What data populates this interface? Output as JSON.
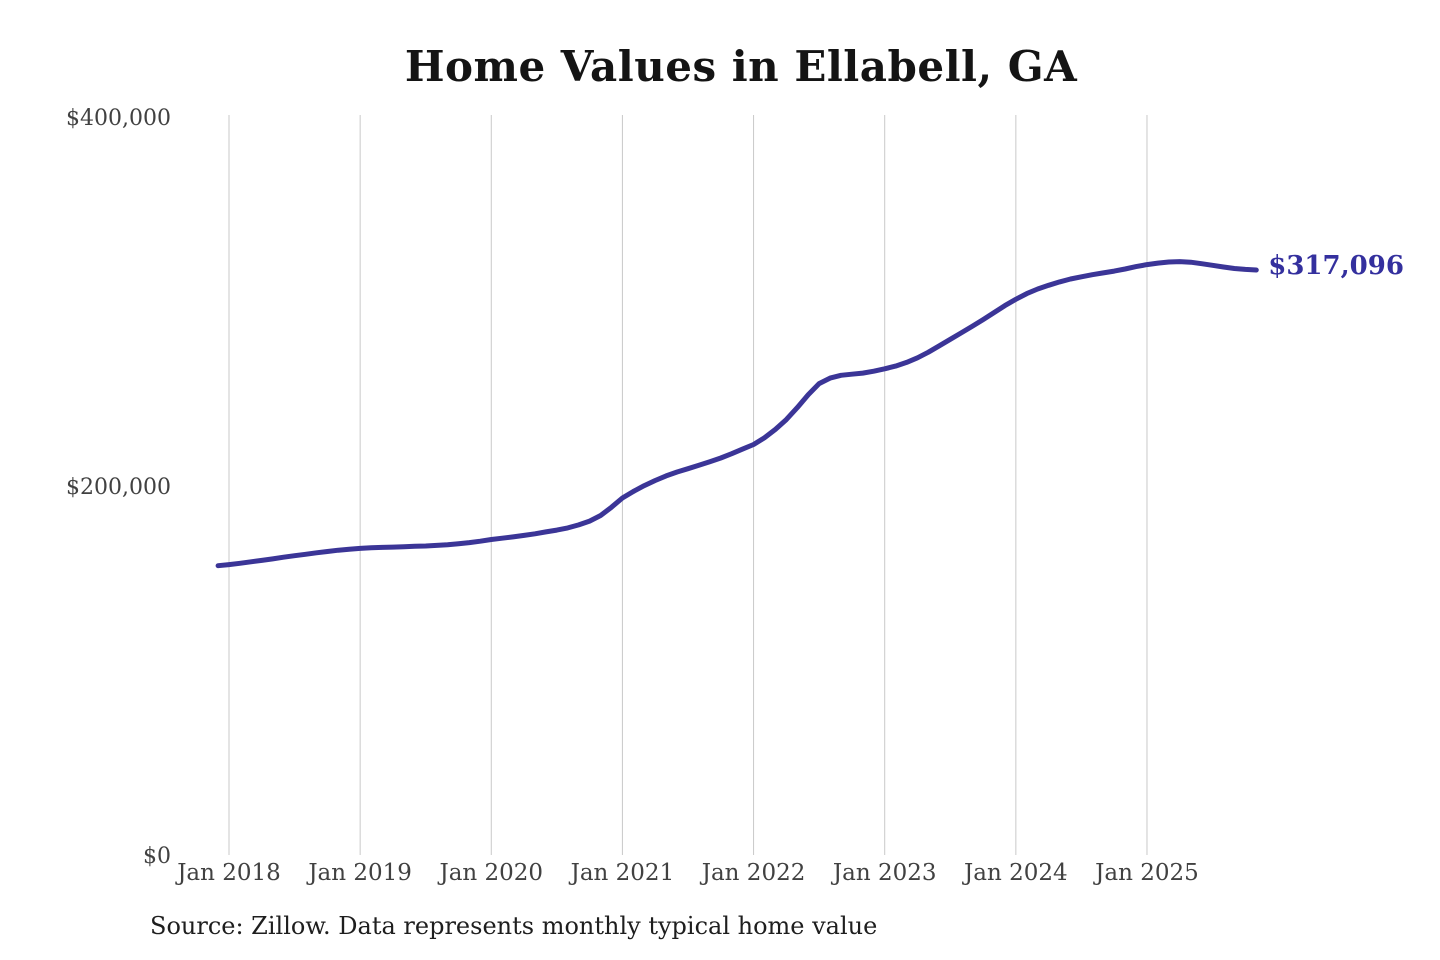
{
  "chart_data": {
    "type": "line",
    "title": "Home Values in Ellabell, GA",
    "source_note": "Source: Zillow. Data represents monthly typical home value",
    "end_label": "$317,096",
    "final_value": 317096,
    "series_name": "Monthly typical home value",
    "x_start": "2017-12",
    "x_end": "2025-11",
    "x_tick_labels": [
      "Jan 2018",
      "Jan 2019",
      "Jan 2020",
      "Jan 2021",
      "Jan 2022",
      "Jan 2023",
      "Jan 2024",
      "Jan 2025"
    ],
    "y_ticks": [
      {
        "label": "$0",
        "value": 0
      },
      {
        "label": "$200,000",
        "value": 200000
      },
      {
        "label": "$400,000",
        "value": 400000
      }
    ],
    "ylim": [
      0,
      400000
    ],
    "grid": "vertical-only",
    "legend": "none",
    "line_color": "#3b3597",
    "end_label_color": "#34309e",
    "values": [
      156800,
      157400,
      158100,
      158900,
      159700,
      160500,
      161400,
      162200,
      163000,
      163800,
      164500,
      165200,
      165700,
      166200,
      166500,
      166700,
      166900,
      167100,
      167300,
      167500,
      167800,
      168200,
      168700,
      169300,
      170100,
      171000,
      171700,
      172400,
      173200,
      174100,
      175100,
      176100,
      177300,
      178900,
      181000,
      184000,
      188500,
      193500,
      197000,
      200200,
      203000,
      205500,
      207600,
      209400,
      211200,
      213100,
      215200,
      217500,
      220000,
      222500,
      226200,
      230700,
      236000,
      242500,
      249500,
      255500,
      258500,
      260000,
      260600,
      261200,
      262200,
      263500,
      265000,
      267000,
      269500,
      272500,
      276000,
      279500,
      283000,
      286500,
      290200,
      294000,
      297800,
      301200,
      304300,
      306800,
      308800,
      310600,
      312200,
      313400,
      314500,
      315500,
      316500,
      317600,
      318900,
      320000,
      320800,
      321400,
      321600,
      321300,
      320500,
      319600,
      318700,
      317900,
      317400,
      317096
    ]
  }
}
